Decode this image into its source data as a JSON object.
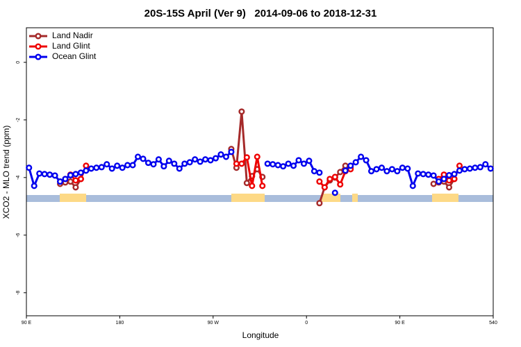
{
  "chart_data": {
    "type": "line",
    "title": "20S-15S April (Ver 9)   2014-09-06 to 2018-12-31",
    "x_label": "Longitude",
    "y_label": "XCO2 - MLO trend (ppm)",
    "xlim": [
      90,
      540
    ],
    "xticks": [
      {
        "value": 90,
        "label": "90 E"
      },
      180,
      {
        "value": 270,
        "label": "90 W"
      },
      {
        "value": 360,
        "label": "0"
      },
      {
        "value": 450,
        "label": "90 E"
      },
      540
    ],
    "ylim": [
      -8.8,
      1.2
    ],
    "yticks": [
      -8,
      -6,
      -4,
      -2,
      0
    ],
    "legend": "topleft",
    "x": [
      92.5,
      97.5,
      102.5,
      107.5,
      112.5,
      117.5,
      122.5,
      127.5,
      132.5,
      137.5,
      142.5,
      147.5,
      152.5,
      157.5,
      162.5,
      167.5,
      172.5,
      177.5,
      182.5,
      187.5,
      192.5,
      197.5,
      202.5,
      207.5,
      212.5,
      217.5,
      222.5,
      227.5,
      232.5,
      237.5,
      242.5,
      247.5,
      252.5,
      257.5,
      262.5,
      267.5,
      272.5,
      277.5,
      282.5,
      287.5,
      292.5,
      297.5,
      302.5,
      307.5,
      312.5,
      317.5,
      322.5,
      327.5,
      332.5,
      337.5,
      342.5,
      347.5,
      352.5,
      357.5,
      362.5,
      367.5,
      372.5,
      377.5,
      382.5,
      387.5,
      392.5,
      397.5,
      402.5,
      407.5,
      412.5,
      417.5,
      422.5,
      427.5,
      432.5,
      437.5,
      442.5,
      447.5,
      452.5,
      457.5,
      462.5,
      467.5,
      472.5,
      477.5,
      482.5,
      487.5,
      492.5,
      497.5,
      502.5,
      507.5,
      512.5,
      517.5,
      522.5,
      527.5,
      532.5,
      537.5
    ],
    "series": [
      {
        "name": "Land Nadir",
        "color": "#a52a2a",
        "values": [
          null,
          null,
          null,
          null,
          null,
          null,
          -4.22,
          -4.17,
          -4.14,
          -4.34,
          -4.05,
          null,
          null,
          null,
          null,
          null,
          null,
          null,
          null,
          null,
          null,
          null,
          null,
          null,
          null,
          null,
          null,
          null,
          null,
          null,
          null,
          null,
          null,
          null,
          null,
          null,
          null,
          null,
          null,
          -3.01,
          -3.66,
          -1.71,
          -4.19,
          -3.95,
          -3.71,
          -3.98,
          null,
          null,
          null,
          null,
          null,
          null,
          null,
          null,
          null,
          null,
          -4.89,
          -4.34,
          -4.1,
          -4.0,
          -3.81,
          -3.59,
          -3.66,
          null,
          null,
          null,
          null,
          null,
          null,
          null,
          null,
          null,
          null,
          null,
          null,
          null,
          null,
          null,
          -4.22,
          -4.17,
          -4.14,
          -4.34,
          -4.05,
          null,
          null,
          null,
          null,
          null,
          null,
          null
        ]
      },
      {
        "name": "Land Glint",
        "color": "#ee0000",
        "values": [
          null,
          null,
          null,
          null,
          null,
          null,
          null,
          -4.05,
          -3.9,
          -4.1,
          -4.05,
          -3.59,
          null,
          null,
          null,
          null,
          null,
          null,
          null,
          null,
          null,
          null,
          null,
          null,
          null,
          null,
          null,
          null,
          null,
          null,
          null,
          null,
          null,
          null,
          null,
          null,
          null,
          null,
          null,
          null,
          -3.52,
          -3.52,
          -3.3,
          -4.29,
          -3.28,
          -4.29,
          null,
          null,
          null,
          null,
          null,
          null,
          null,
          null,
          null,
          null,
          -4.14,
          -4.34,
          -4.05,
          -3.98,
          -4.24,
          -3.78,
          -3.71,
          null,
          null,
          null,
          null,
          null,
          null,
          null,
          null,
          null,
          null,
          null,
          null,
          null,
          null,
          null,
          null,
          -4.05,
          -3.9,
          -4.1,
          -4.05,
          -3.59,
          null,
          null,
          null,
          null,
          null,
          null
        ]
      },
      {
        "name": "Ocean Glint",
        "color": "#0000ee",
        "values": [
          -3.66,
          -4.29,
          -3.86,
          -3.88,
          -3.9,
          -3.93,
          -4.14,
          -4.05,
          -3.92,
          -3.88,
          -3.83,
          -3.76,
          -3.69,
          -3.66,
          -3.64,
          -3.54,
          -3.69,
          -3.59,
          -3.66,
          -3.57,
          -3.57,
          -3.28,
          -3.35,
          -3.49,
          -3.54,
          -3.37,
          -3.61,
          -3.42,
          -3.52,
          -3.69,
          -3.52,
          -3.47,
          -3.37,
          -3.45,
          -3.37,
          -3.4,
          -3.33,
          -3.2,
          -3.28,
          -3.11,
          null,
          null,
          null,
          null,
          null,
          null,
          -3.52,
          -3.54,
          -3.57,
          -3.61,
          -3.52,
          -3.59,
          -3.4,
          -3.52,
          -3.42,
          -3.78,
          -3.83,
          null,
          null,
          -4.53,
          null,
          -3.76,
          -3.59,
          -3.47,
          -3.28,
          -3.4,
          -3.78,
          -3.71,
          -3.66,
          -3.78,
          -3.71,
          -3.78,
          -3.66,
          -3.69,
          -4.29,
          -3.86,
          -3.88,
          -3.9,
          -3.93,
          -4.14,
          -4.05,
          -3.92,
          -3.88,
          -3.76,
          -3.71,
          -3.69,
          -3.66,
          -3.64,
          -3.54,
          -3.69
        ]
      }
    ]
  }
}
